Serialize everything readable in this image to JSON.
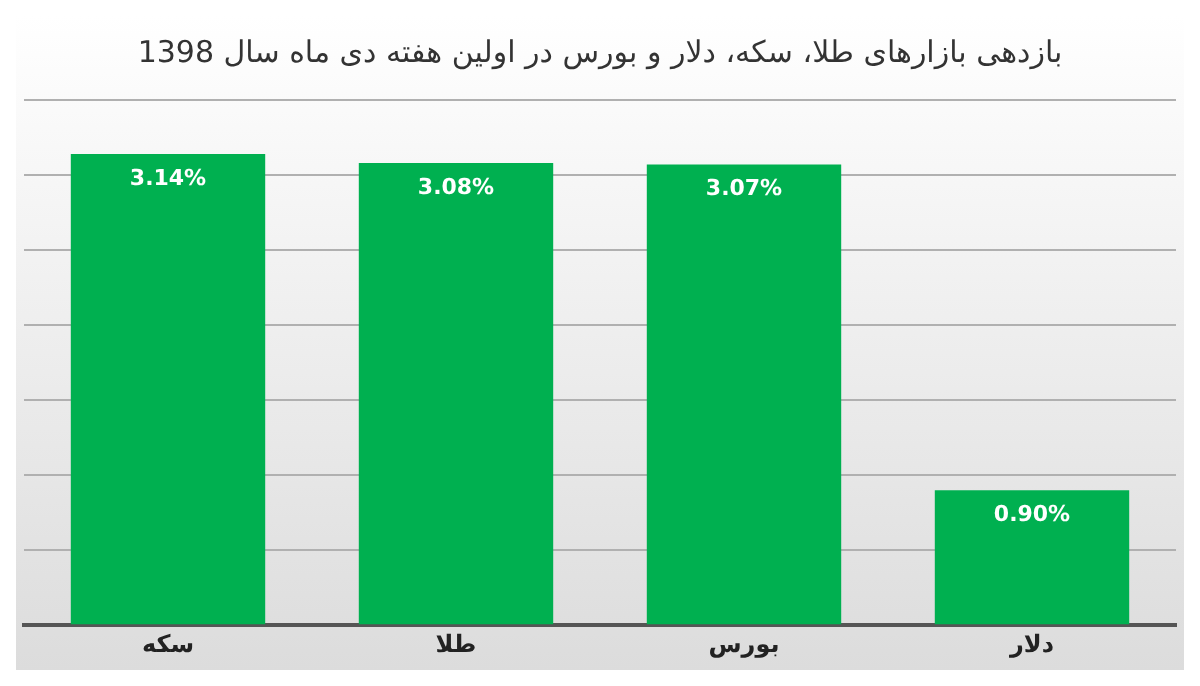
{
  "chart_data": {
    "type": "bar",
    "title": "بازدهی بازارهای طلا، سکه، دلار و بورس در اولین هفته دی ماه سال 1398",
    "categories": [
      "سکه",
      "طلا",
      "بورس",
      "دلار"
    ],
    "values": [
      3.14,
      3.08,
      3.07,
      0.9
    ],
    "value_labels": [
      "3.14%",
      "3.08%",
      "3.07%",
      "0.90%"
    ],
    "color": "#00b050",
    "ylim": [
      0,
      3.5
    ],
    "yticks": [
      {
        "value": 0,
        "label": null
      },
      {
        "value": 0.5,
        "label": null
      },
      {
        "value": 1,
        "label": null
      },
      {
        "value": 1.5,
        "label": null
      },
      {
        "value": 2,
        "label": null
      },
      {
        "value": 2.5,
        "label": null
      },
      {
        "value": 3,
        "label": null
      },
      {
        "value": 3.5,
        "label": null
      }
    ],
    "grid": "y",
    "tick_labels": "x",
    "legend": false
  }
}
